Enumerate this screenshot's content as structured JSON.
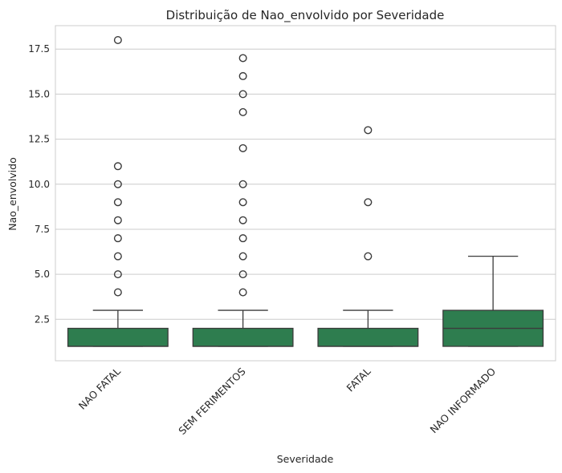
{
  "chart_data": {
    "type": "box",
    "title": "Distribuição de Nao_envolvido por Severidade",
    "xlabel": "Severidade",
    "ylabel": "Nao_envolvido",
    "ylim": [
      0.2,
      18.8
    ],
    "yticks": [
      2.5,
      5.0,
      7.5,
      10.0,
      12.5,
      15.0,
      17.5
    ],
    "ytick_labels": [
      "2.5",
      "5.0",
      "7.5",
      "10.0",
      "12.5",
      "15.0",
      "17.5"
    ],
    "grid": "horizontal",
    "box_color": "#2e7d4f",
    "categories": [
      "NAO FATAL",
      "SEM FERIMENTOS",
      "FATAL",
      "NAO INFORMADO"
    ],
    "boxes": [
      {
        "category": "NAO FATAL",
        "whisker_low": 1,
        "q1": 1,
        "median": 1,
        "q3": 2,
        "whisker_high": 3,
        "outliers": [
          4,
          5,
          6,
          7,
          8,
          9,
          10,
          11,
          18
        ]
      },
      {
        "category": "SEM FERIMENTOS",
        "whisker_low": 1,
        "q1": 1,
        "median": 1,
        "q3": 2,
        "whisker_high": 3,
        "outliers": [
          4,
          5,
          6,
          7,
          8,
          9,
          10,
          12,
          14,
          15,
          16,
          17
        ]
      },
      {
        "category": "FATAL",
        "whisker_low": 1,
        "q1": 1,
        "median": 1,
        "q3": 2,
        "whisker_high": 3,
        "outliers": [
          6,
          9,
          13
        ]
      },
      {
        "category": "NAO INFORMADO",
        "whisker_low": 1,
        "q1": 1,
        "median": 2,
        "q3": 3,
        "whisker_high": 6,
        "outliers": []
      }
    ]
  }
}
